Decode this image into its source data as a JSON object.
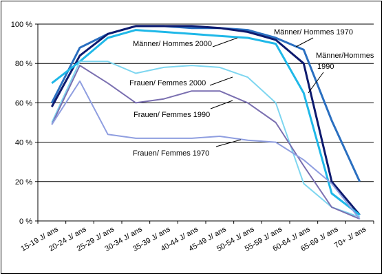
{
  "chart_data": {
    "type": "line",
    "categories": [
      "15-19 J/ ans",
      "20-24 J/ ans",
      "25-29 J/ ans",
      "30-34 J/ ans",
      "35-39 J/ ans",
      "40-44 J/ ans",
      "45-49 J/ ans",
      "50-54 J/ ans",
      "55-59 J/ ans",
      "60-64 J/ ans",
      "65-69 J/ ans",
      "70+ J/ ans"
    ],
    "y_ticks": [
      "0 %",
      "20 %",
      "40 %",
      "60 %",
      "80 %",
      "100 %"
    ],
    "ylim": [
      0,
      100
    ],
    "grid": true,
    "title": "",
    "xlabel": "",
    "ylabel": "",
    "series": [
      {
        "name": "Männer/ Hommes 1970",
        "color": "#2a6fc0",
        "width": 3,
        "values": [
          60,
          88,
          95,
          99,
          99,
          98,
          98,
          97,
          93,
          87,
          51,
          20
        ]
      },
      {
        "name": "Männer/ Hommes 1990",
        "color": "#0d1a6e",
        "width": 3,
        "values": [
          58,
          84,
          95,
          99,
          99,
          99,
          98,
          96,
          92,
          80,
          20,
          3
        ]
      },
      {
        "name": "Männer/ Hommes 2000",
        "color": "#1fb8e8",
        "width": 3,
        "values": [
          70,
          81,
          93,
          97,
          96,
          95,
          94,
          93,
          90,
          65,
          14,
          3
        ]
      },
      {
        "name": "Frauen/ Femmes 2000",
        "color": "#7ed6f0",
        "width": 2,
        "values": [
          50,
          81,
          81,
          75,
          78,
          79,
          78,
          73,
          60,
          19,
          7,
          2
        ]
      },
      {
        "name": "Frauen/ Femmes 1990",
        "color": "#7a6fb0",
        "width": 2,
        "values": [
          49,
          79,
          70,
          60,
          62,
          66,
          66,
          60,
          50,
          28,
          7,
          1
        ]
      },
      {
        "name": "Frauen/ Femmes 1970",
        "color": "#8f9ee0",
        "width": 2,
        "values": [
          49,
          71,
          44,
          42,
          42,
          42,
          43,
          41,
          40,
          31,
          19,
          1
        ]
      }
    ],
    "annotations": [
      {
        "text": "Männer/ Hommes 1970",
        "series": "Männer/ Hommes 1970"
      },
      {
        "text": "Männer/Hommes",
        "series": "Männer/ Hommes 1990"
      },
      {
        "text": "1990",
        "series": "Männer/ Hommes 1990"
      },
      {
        "text": "Männer/ Hommes 2000",
        "series": "Männer/ Hommes 2000"
      },
      {
        "text": "Frauen/ Femmes 2000",
        "series": "Frauen/ Femmes 2000"
      },
      {
        "text": "Frauen/ Femmes 1990",
        "series": "Frauen/ Femmes 1990"
      },
      {
        "text": "Frauen/ Femmes 1970",
        "series": "Frauen/ Femmes 1970"
      }
    ]
  }
}
